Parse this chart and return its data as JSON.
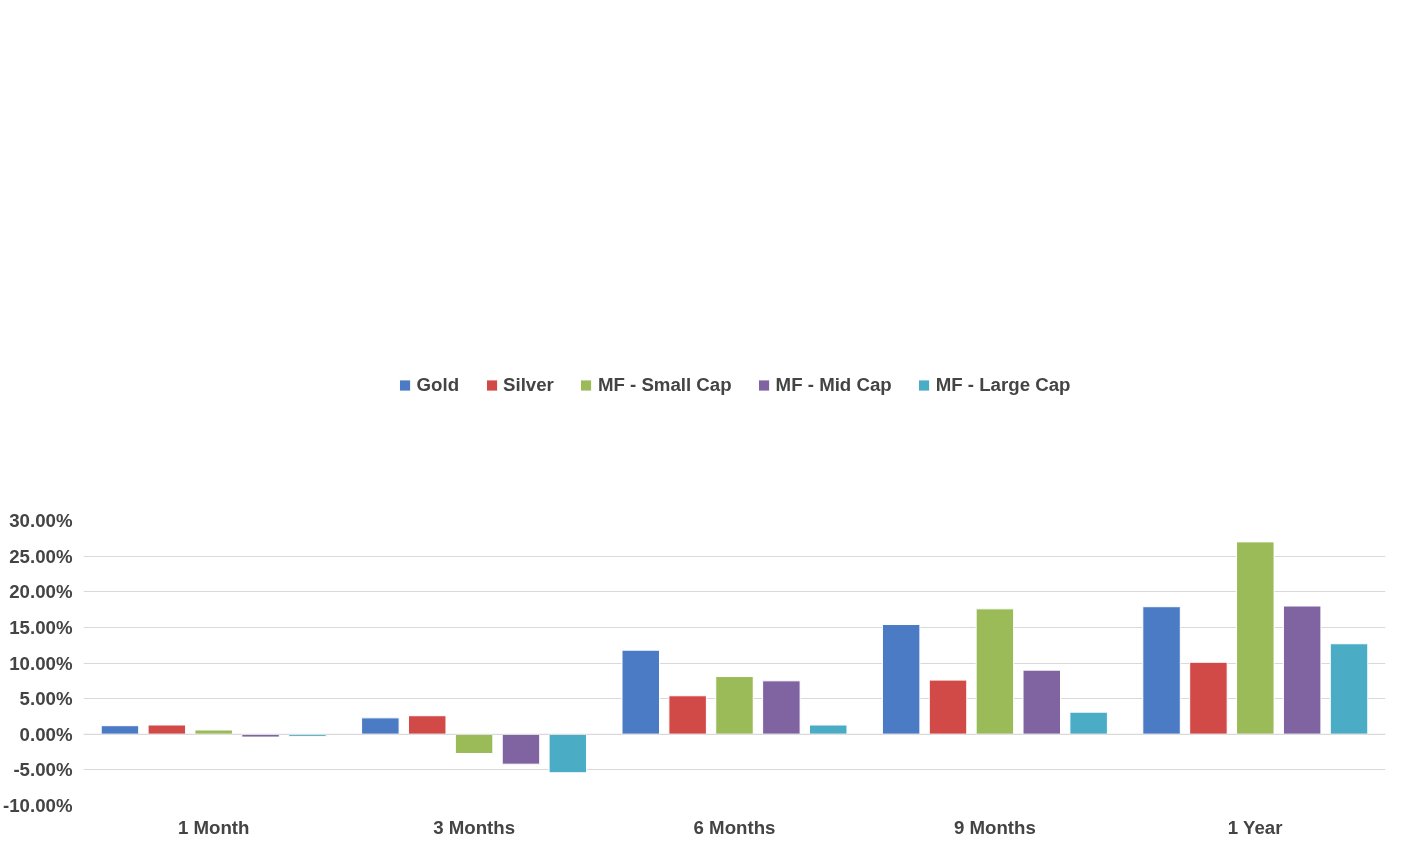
{
  "chart_data": {
    "type": "bar",
    "categories": [
      "1 Month",
      "3 Months",
      "6 Months",
      "9 Months",
      "1 Year"
    ],
    "series": [
      {
        "name": "Gold",
        "color": "#4a7bc4",
        "values": [
          1.2,
          2.3,
          11.8,
          15.4,
          17.9
        ]
      },
      {
        "name": "Silver",
        "color": "#d24a47",
        "values": [
          1.3,
          2.6,
          5.4,
          7.6,
          10.1
        ]
      },
      {
        "name": "MF - Small Cap",
        "color": "#9bbb59",
        "values": [
          0.6,
          -2.7,
          8.1,
          17.6,
          27.0
        ]
      },
      {
        "name": "MF - Mid Cap",
        "color": "#8064a2",
        "values": [
          -0.4,
          -4.2,
          7.5,
          9.0,
          18.0
        ]
      },
      {
        "name": "MF - Large Cap",
        "color": "#4bacc6",
        "values": [
          -0.3,
          -5.4,
          1.3,
          3.1,
          12.7
        ]
      }
    ],
    "ylim": [
      -10,
      30
    ],
    "yticks": [
      {
        "value": -10,
        "label": "-10.00%"
      },
      {
        "value": -5,
        "label": "-5.00%"
      },
      {
        "value": 0,
        "label": "0.00%"
      },
      {
        "value": 5,
        "label": "5.00%"
      },
      {
        "value": 10,
        "label": "10.00%"
      },
      {
        "value": 15,
        "label": "15.00%"
      },
      {
        "value": 20,
        "label": "20.00%"
      },
      {
        "value": 25,
        "label": "25.00%"
      },
      {
        "value": 30,
        "label": "30.00%"
      }
    ],
    "grid": "y",
    "legend": "top"
  }
}
